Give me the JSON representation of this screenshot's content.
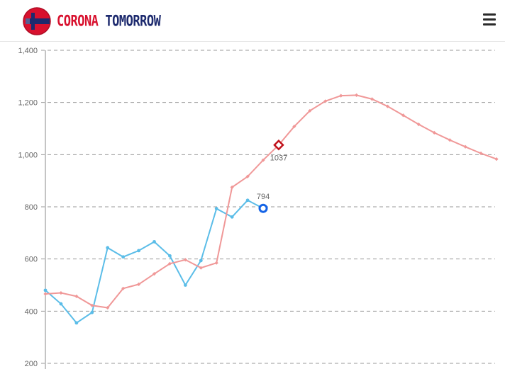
{
  "header": {
    "logo_word1": "CORONA",
    "logo_word2": "TOMORROW",
    "menu_icon": "hamburger-menu-icon"
  },
  "colors": {
    "brand_red": "#d8112e",
    "brand_navy": "#1d2a6e",
    "actual_series": "#5bbde8",
    "forecast_series": "#f09898",
    "actual_marker": "#1463e6",
    "forecast_marker": "#c0101a"
  },
  "chart_data": {
    "type": "line",
    "y_ticks": [
      "1,400",
      "1,200",
      "1,000",
      "800",
      "600",
      "400",
      "200"
    ],
    "y_tick_values": [
      1400,
      1200,
      1000,
      800,
      600,
      400,
      200
    ],
    "ylim": [
      200,
      1400
    ],
    "x_count": 30,
    "grid": "dashed-horizontal",
    "series": [
      {
        "key": "actual",
        "values": [
          480,
          428,
          355,
          395,
          643,
          608,
          632,
          666,
          612,
          500,
          594,
          793,
          761,
          825,
          794
        ]
      },
      {
        "key": "forecast",
        "values": [
          466,
          470,
          457,
          422,
          413,
          487,
          503,
          543,
          582,
          597,
          566,
          585,
          875,
          916,
          979,
          1037,
          1108,
          1168,
          1205,
          1226,
          1228,
          1213,
          1185,
          1151,
          1116,
          1084,
          1056,
          1030,
          1005,
          983
        ]
      }
    ],
    "annotations": [
      {
        "series": "actual",
        "index": 14,
        "label": "794"
      },
      {
        "series": "forecast",
        "index": 15,
        "label": "1037"
      }
    ]
  }
}
